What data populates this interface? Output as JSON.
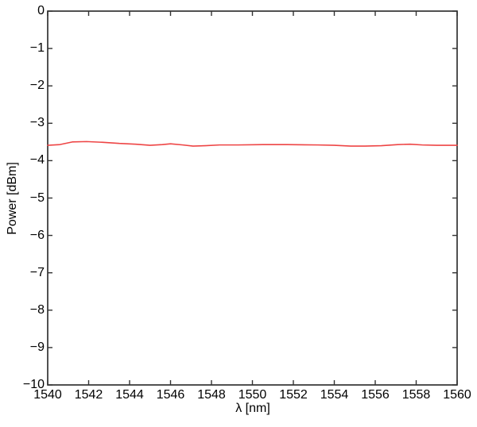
{
  "figure": {
    "background": "#ffffff",
    "frame_color": "#333333",
    "text_color": "#000000"
  },
  "chart_data": {
    "type": "line",
    "title": "",
    "xlabel": "λ [nm]",
    "ylabel": "Power [dBm]",
    "xlim": [
      1540,
      1560
    ],
    "ylim": [
      -10,
      0
    ],
    "grid": false,
    "legend": "none",
    "tick_style": "inward, mirrored on all four sides",
    "x_ticks": {
      "values": [
        1540,
        1542,
        1544,
        1546,
        1548,
        1550,
        1552,
        1554,
        1556,
        1558,
        1560
      ],
      "labels": [
        "1540",
        "1542",
        "1544",
        "1546",
        "1548",
        "1550",
        "1552",
        "1554",
        "1556",
        "1558",
        "1560"
      ]
    },
    "y_ticks": {
      "values": [
        0,
        -1,
        -2,
        -3,
        -4,
        -5,
        -6,
        -7,
        -8,
        -9,
        -10
      ],
      "labels": [
        "0",
        "−1",
        "−2",
        "−3",
        "−4",
        "−5",
        "−6",
        "−7",
        "−8",
        "−9",
        "−10"
      ]
    },
    "series": [
      {
        "name": "power-trace",
        "color": "#ee4545",
        "x": [
          1540.0,
          1540.6,
          1541.2,
          1541.9,
          1542.7,
          1543.5,
          1544.3,
          1545.0,
          1545.6,
          1546.0,
          1546.6,
          1547.1,
          1547.7,
          1548.4,
          1549.3,
          1550.5,
          1551.7,
          1553.2,
          1554.0,
          1554.8,
          1555.5,
          1556.3,
          1557.1,
          1557.7,
          1558.3,
          1559.0,
          1560.0
        ],
        "y": [
          -3.59,
          -3.57,
          -3.5,
          -3.49,
          -3.51,
          -3.54,
          -3.56,
          -3.59,
          -3.57,
          -3.55,
          -3.58,
          -3.61,
          -3.6,
          -3.58,
          -3.58,
          -3.57,
          -3.57,
          -3.58,
          -3.59,
          -3.61,
          -3.61,
          -3.6,
          -3.57,
          -3.56,
          -3.58,
          -3.59,
          -3.59
        ]
      }
    ]
  }
}
